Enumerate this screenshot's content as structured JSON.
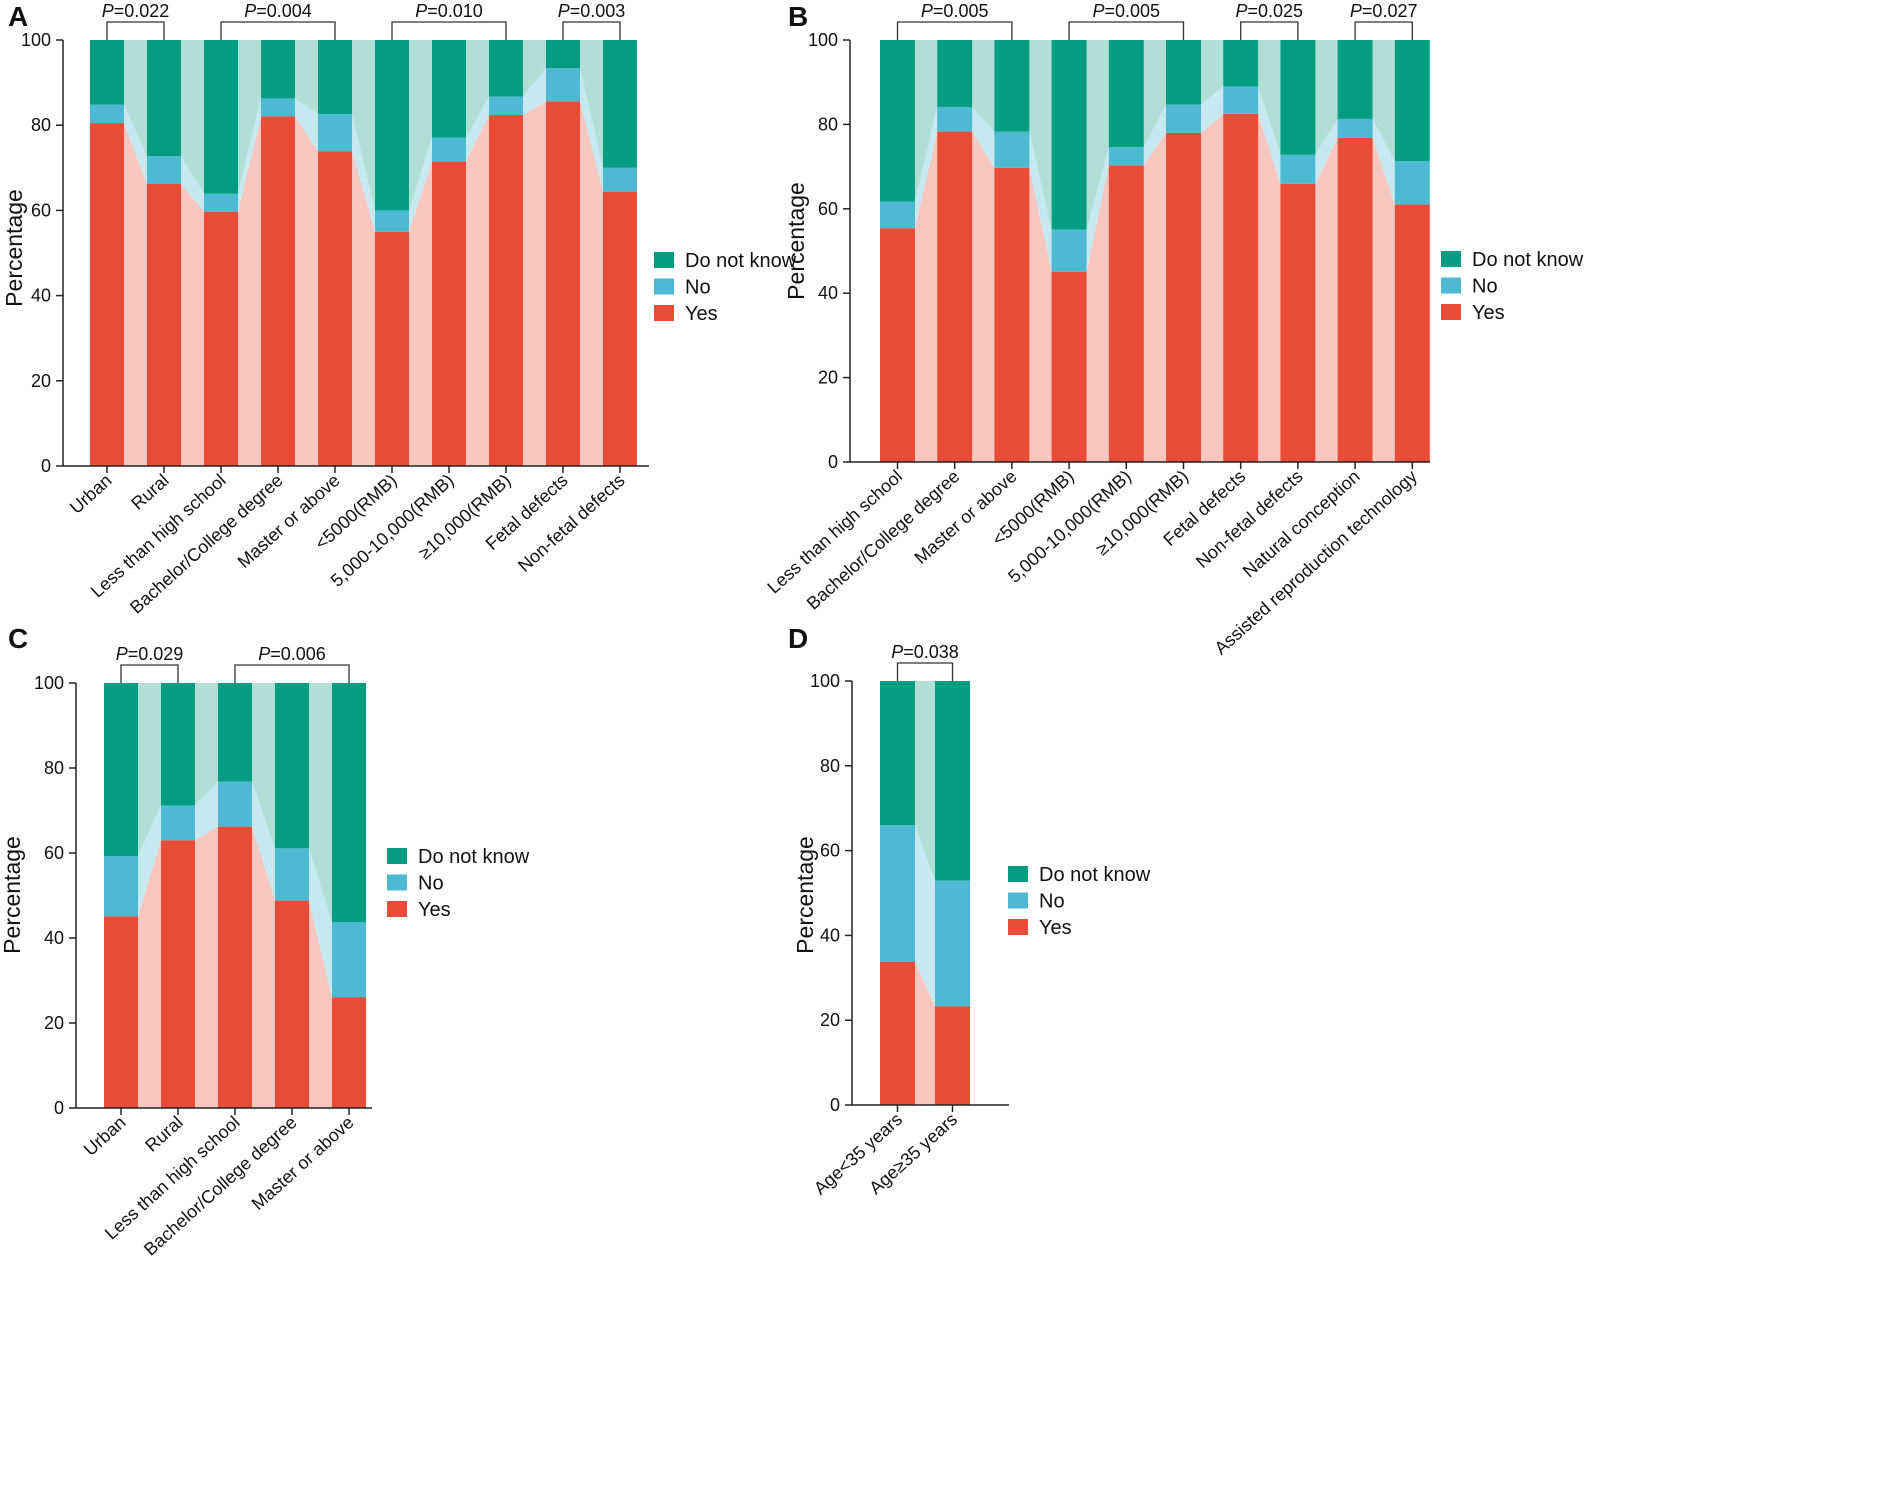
{
  "colors": {
    "yes": "#e84c37",
    "no": "#4eb9d3",
    "dont_know": "#059d82",
    "yes_band": "#f6c6bf",
    "no_band": "#c6e8f1",
    "dont_know_band": "#b1dfd6"
  },
  "chart_data": [
    {
      "panel": "A",
      "type": "bar",
      "stacked": true,
      "ylabel": "Percentage",
      "ylim": [
        0,
        100
      ],
      "yticks": [
        0,
        20,
        40,
        60,
        80,
        100
      ],
      "legend": [
        "Do not know",
        "No",
        "Yes"
      ],
      "categories": [
        "Urban",
        "Rural",
        "Less than high school",
        "Bachelor/College degree",
        "Master or above",
        "<5000(RMB)",
        "5,000-10,000(RMB)",
        "≥10,000(RMB)",
        "Fetal defects",
        "Non-fetal defects"
      ],
      "series": [
        {
          "name": "Yes",
          "values": [
            80.5,
            66.2,
            59.7,
            82.1,
            73.9,
            55.0,
            71.5,
            82.4,
            85.6,
            64.4
          ]
        },
        {
          "name": "No",
          "values": [
            4.3,
            6.5,
            4.2,
            4.2,
            8.7,
            5.0,
            5.6,
            4.3,
            7.8,
            5.6
          ]
        },
        {
          "name": "Do not know",
          "values": [
            15.2,
            27.3,
            36.1,
            13.7,
            17.4,
            40.0,
            22.9,
            13.3,
            6.6,
            30.0
          ]
        }
      ],
      "pvalues": [
        {
          "label": "P",
          "value": "=0.022",
          "from": 0,
          "to": 1
        },
        {
          "label": "P",
          "value": "=0.004",
          "from": 2,
          "to": 4
        },
        {
          "label": "P",
          "value": "=0.010",
          "from": 5,
          "to": 7
        },
        {
          "label": "P",
          "value": "=0.003",
          "from": 8,
          "to": 9
        }
      ]
    },
    {
      "panel": "B",
      "type": "bar",
      "stacked": true,
      "ylabel": "Percentage",
      "ylim": [
        0,
        100
      ],
      "yticks": [
        0,
        20,
        40,
        60,
        80,
        100
      ],
      "legend": [
        "Do not know",
        "No",
        "Yes"
      ],
      "categories": [
        "Less than high school",
        "Bachelor/College degree",
        "Master or above",
        "<5000(RMB)",
        "5,000-10,000(RMB)",
        "≥10,000(RMB)",
        "Fetal defects",
        "Non-fetal defects",
        "Natural conception",
        "Assisted reproduction technology"
      ],
      "series": [
        {
          "name": "Yes",
          "values": [
            55.4,
            78.3,
            69.7,
            45.1,
            70.3,
            78.0,
            82.5,
            65.9,
            76.8,
            61.0
          ]
        },
        {
          "name": "No",
          "values": [
            6.3,
            5.8,
            8.6,
            10.0,
            4.3,
            6.7,
            6.5,
            6.9,
            4.5,
            10.3
          ]
        },
        {
          "name": "Do not know",
          "values": [
            38.3,
            15.9,
            21.7,
            44.9,
            25.4,
            15.3,
            11.0,
            27.2,
            18.7,
            28.7
          ]
        }
      ],
      "pvalues": [
        {
          "label": "P",
          "value": "=0.005",
          "from": 0,
          "to": 2
        },
        {
          "label": "P",
          "value": "=0.005",
          "from": 3,
          "to": 5
        },
        {
          "label": "P",
          "value": "=0.025",
          "from": 6,
          "to": 7
        },
        {
          "label": "P",
          "value": "=0.027",
          "from": 8,
          "to": 9
        }
      ]
    },
    {
      "panel": "C",
      "type": "bar",
      "stacked": true,
      "ylabel": "Percentage",
      "ylim": [
        0,
        100
      ],
      "yticks": [
        0,
        20,
        40,
        60,
        80,
        100
      ],
      "legend": [
        "Do not know",
        "No",
        "Yes"
      ],
      "categories": [
        "Urban",
        "Rural",
        "Less than high school",
        "Bachelor/College degree",
        "Master or above"
      ],
      "series": [
        {
          "name": "Yes",
          "values": [
            45.1,
            63.0,
            66.2,
            48.8,
            26.0
          ]
        },
        {
          "name": "No",
          "values": [
            14.2,
            8.2,
            10.6,
            12.3,
            17.7
          ]
        },
        {
          "name": "Do not know",
          "values": [
            40.7,
            28.8,
            23.2,
            38.9,
            56.3
          ]
        }
      ],
      "pvalues": [
        {
          "label": "P",
          "value": "=0.029",
          "from": 0,
          "to": 1
        },
        {
          "label": "P",
          "value": "=0.006",
          "from": 2,
          "to": 4
        }
      ]
    },
    {
      "panel": "D",
      "type": "bar",
      "stacked": true,
      "ylabel": "Percentage",
      "ylim": [
        0,
        100
      ],
      "yticks": [
        0,
        20,
        40,
        60,
        80,
        100
      ],
      "legend": [
        "Do not know",
        "No",
        "Yes"
      ],
      "categories": [
        "Age<35 years",
        "Age≥35 years"
      ],
      "series": [
        {
          "name": "Yes",
          "values": [
            33.8,
            23.3
          ]
        },
        {
          "name": "No",
          "values": [
            32.2,
            29.6
          ]
        },
        {
          "name": "Do not know",
          "values": [
            34.0,
            47.1
          ]
        }
      ],
      "pvalues": [
        {
          "label": "P",
          "value": "=0.038",
          "from": 0,
          "to": 1
        }
      ]
    }
  ]
}
